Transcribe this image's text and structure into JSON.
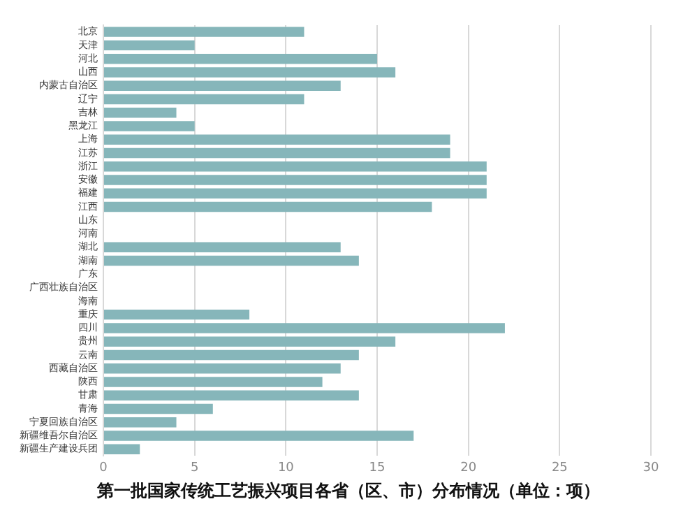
{
  "chart_data": {
    "type": "bar",
    "orientation": "horizontal",
    "title": "第一批国家传统工艺振兴项目各省（区、市）分布情况（单位：项）",
    "categories": [
      "北京",
      "天津",
      "河北",
      "山西",
      "内蒙古自治区",
      "辽宁",
      "吉林",
      "黑龙江",
      "上海",
      "江苏",
      "浙江",
      "安徽",
      "福建",
      "江西",
      "山东",
      "河南",
      "湖北",
      "湖南",
      "广东",
      "广西壮族自治区",
      "海南",
      "重庆",
      "四川",
      "贵州",
      "云南",
      "西藏自治区",
      "陕西",
      "甘肃",
      "青海",
      "宁夏回族自治区",
      "新疆维吾尔自治区",
      "新疆生产建设兵团"
    ],
    "values": [
      11,
      5,
      15,
      16,
      13,
      11,
      4,
      5,
      19,
      19,
      21,
      21,
      21,
      18,
      null,
      null,
      13,
      14,
      null,
      null,
      null,
      8,
      22,
      16,
      14,
      13,
      12,
      14,
      6,
      4,
      17,
      2
    ],
    "color": "#86b6ba",
    "xlim": [
      0,
      30
    ],
    "xticks": [
      0,
      5,
      10,
      15,
      20,
      25,
      30
    ],
    "grid": "x"
  }
}
